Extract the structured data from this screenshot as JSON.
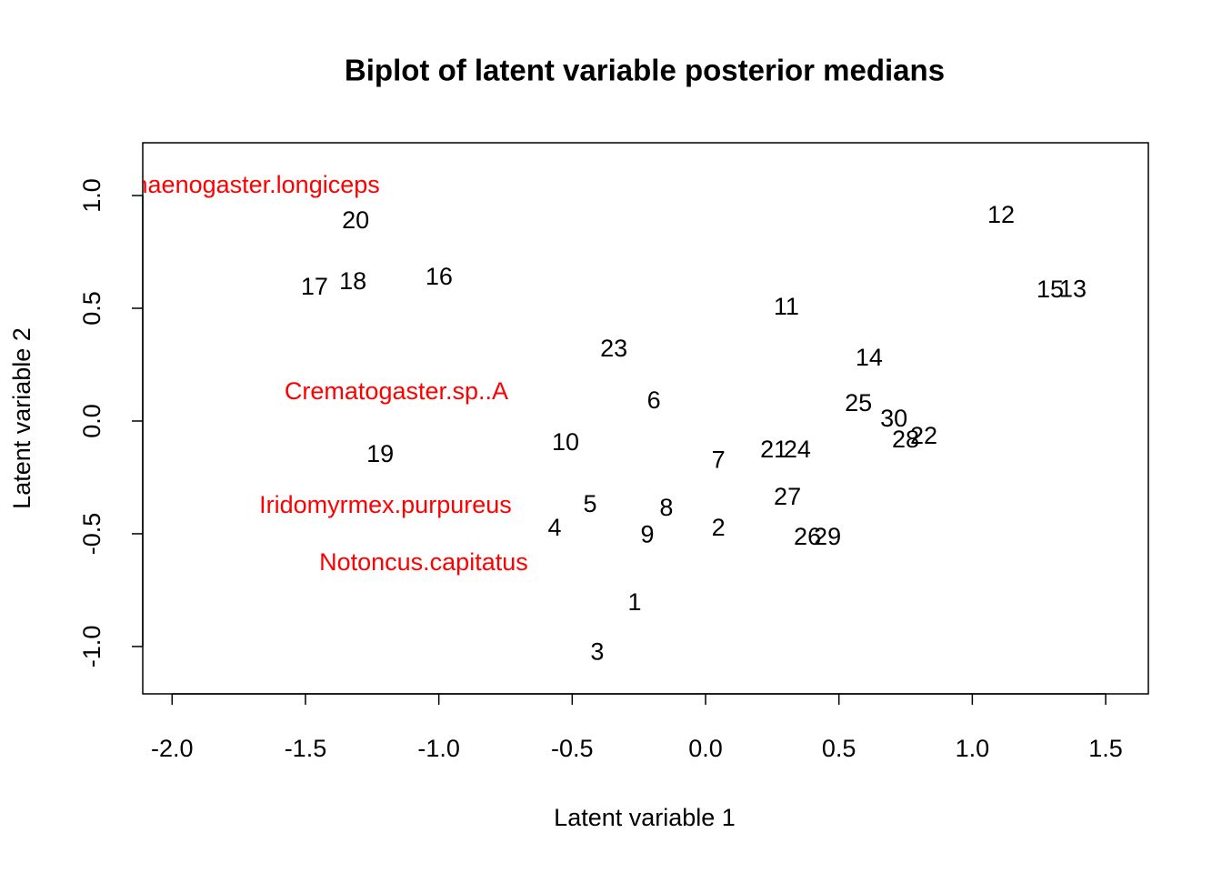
{
  "chart_data": {
    "type": "scatter",
    "title": "Biplot of latent variable posterior medians",
    "x_label": "Latent variable 1",
    "y_label": "Latent variable 2",
    "xlim": [
      -2.11,
      1.66
    ],
    "ylim": [
      -1.21,
      1.234
    ],
    "xticks": [
      {
        "value": -2.0,
        "label": "-2.0"
      },
      {
        "value": -1.5,
        "label": "-1.5"
      },
      {
        "value": -1.0,
        "label": "-1.0"
      },
      {
        "value": -0.5,
        "label": "-0.5"
      },
      {
        "value": 0.0,
        "label": "0.0"
      },
      {
        "value": 0.5,
        "label": "0.5"
      },
      {
        "value": 1.0,
        "label": "1.0"
      },
      {
        "value": 1.5,
        "label": "1.5"
      }
    ],
    "yticks": [
      {
        "value": -1.0,
        "label": "-1.0"
      },
      {
        "value": -0.5,
        "label": "-0.5"
      },
      {
        "value": 0.0,
        "label": "0.0"
      },
      {
        "value": 0.5,
        "label": "0.5"
      },
      {
        "value": 1.0,
        "label": "1.0"
      }
    ],
    "series": [
      {
        "color": "#000000",
        "labels": [
          "1",
          "2",
          "3",
          "4",
          "5",
          "6",
          "7",
          "8",
          "9",
          "10",
          "11",
          "12",
          "13",
          "14",
          "15",
          "16",
          "17",
          "18",
          "19",
          "20",
          "21",
          "22",
          "23",
          "24",
          "25",
          "26",
          "27",
          "28",
          "29",
          "30"
        ],
        "x": [
          -0.266,
          0.048,
          -0.406,
          -0.566,
          -0.433,
          -0.194,
          0.048,
          -0.147,
          -0.218,
          -0.525,
          0.303,
          1.108,
          1.377,
          0.613,
          1.292,
          -0.999,
          -1.466,
          -1.322,
          -1.22,
          -1.312,
          0.256,
          0.818,
          -0.344,
          0.344,
          0.573,
          0.382,
          0.307,
          0.75,
          0.457,
          0.706
        ],
        "values": [
          -0.81,
          -0.48,
          -1.03,
          -0.48,
          -0.375,
          0.085,
          -0.18,
          -0.39,
          -0.51,
          -0.1,
          0.5,
          0.907,
          0.58,
          0.274,
          0.577,
          0.633,
          0.589,
          0.613,
          -0.153,
          0.883,
          -0.133,
          -0.073,
          0.315,
          -0.133,
          0.073,
          -0.52,
          -0.343,
          -0.089,
          -0.52,
          0.004
        ]
      },
      {
        "color": "#ff0000",
        "labels": [
          "Aphaenogaster.longiceps",
          "Crematogaster.sp..A",
          "Iridomyrmex.purpureus",
          "Notoncus.capitatus"
        ],
        "x": [
          -1.738,
          -1.159,
          -1.2,
          -1.057
        ],
        "values": [
          1.04,
          0.125,
          -0.379,
          -0.633
        ]
      }
    ]
  }
}
